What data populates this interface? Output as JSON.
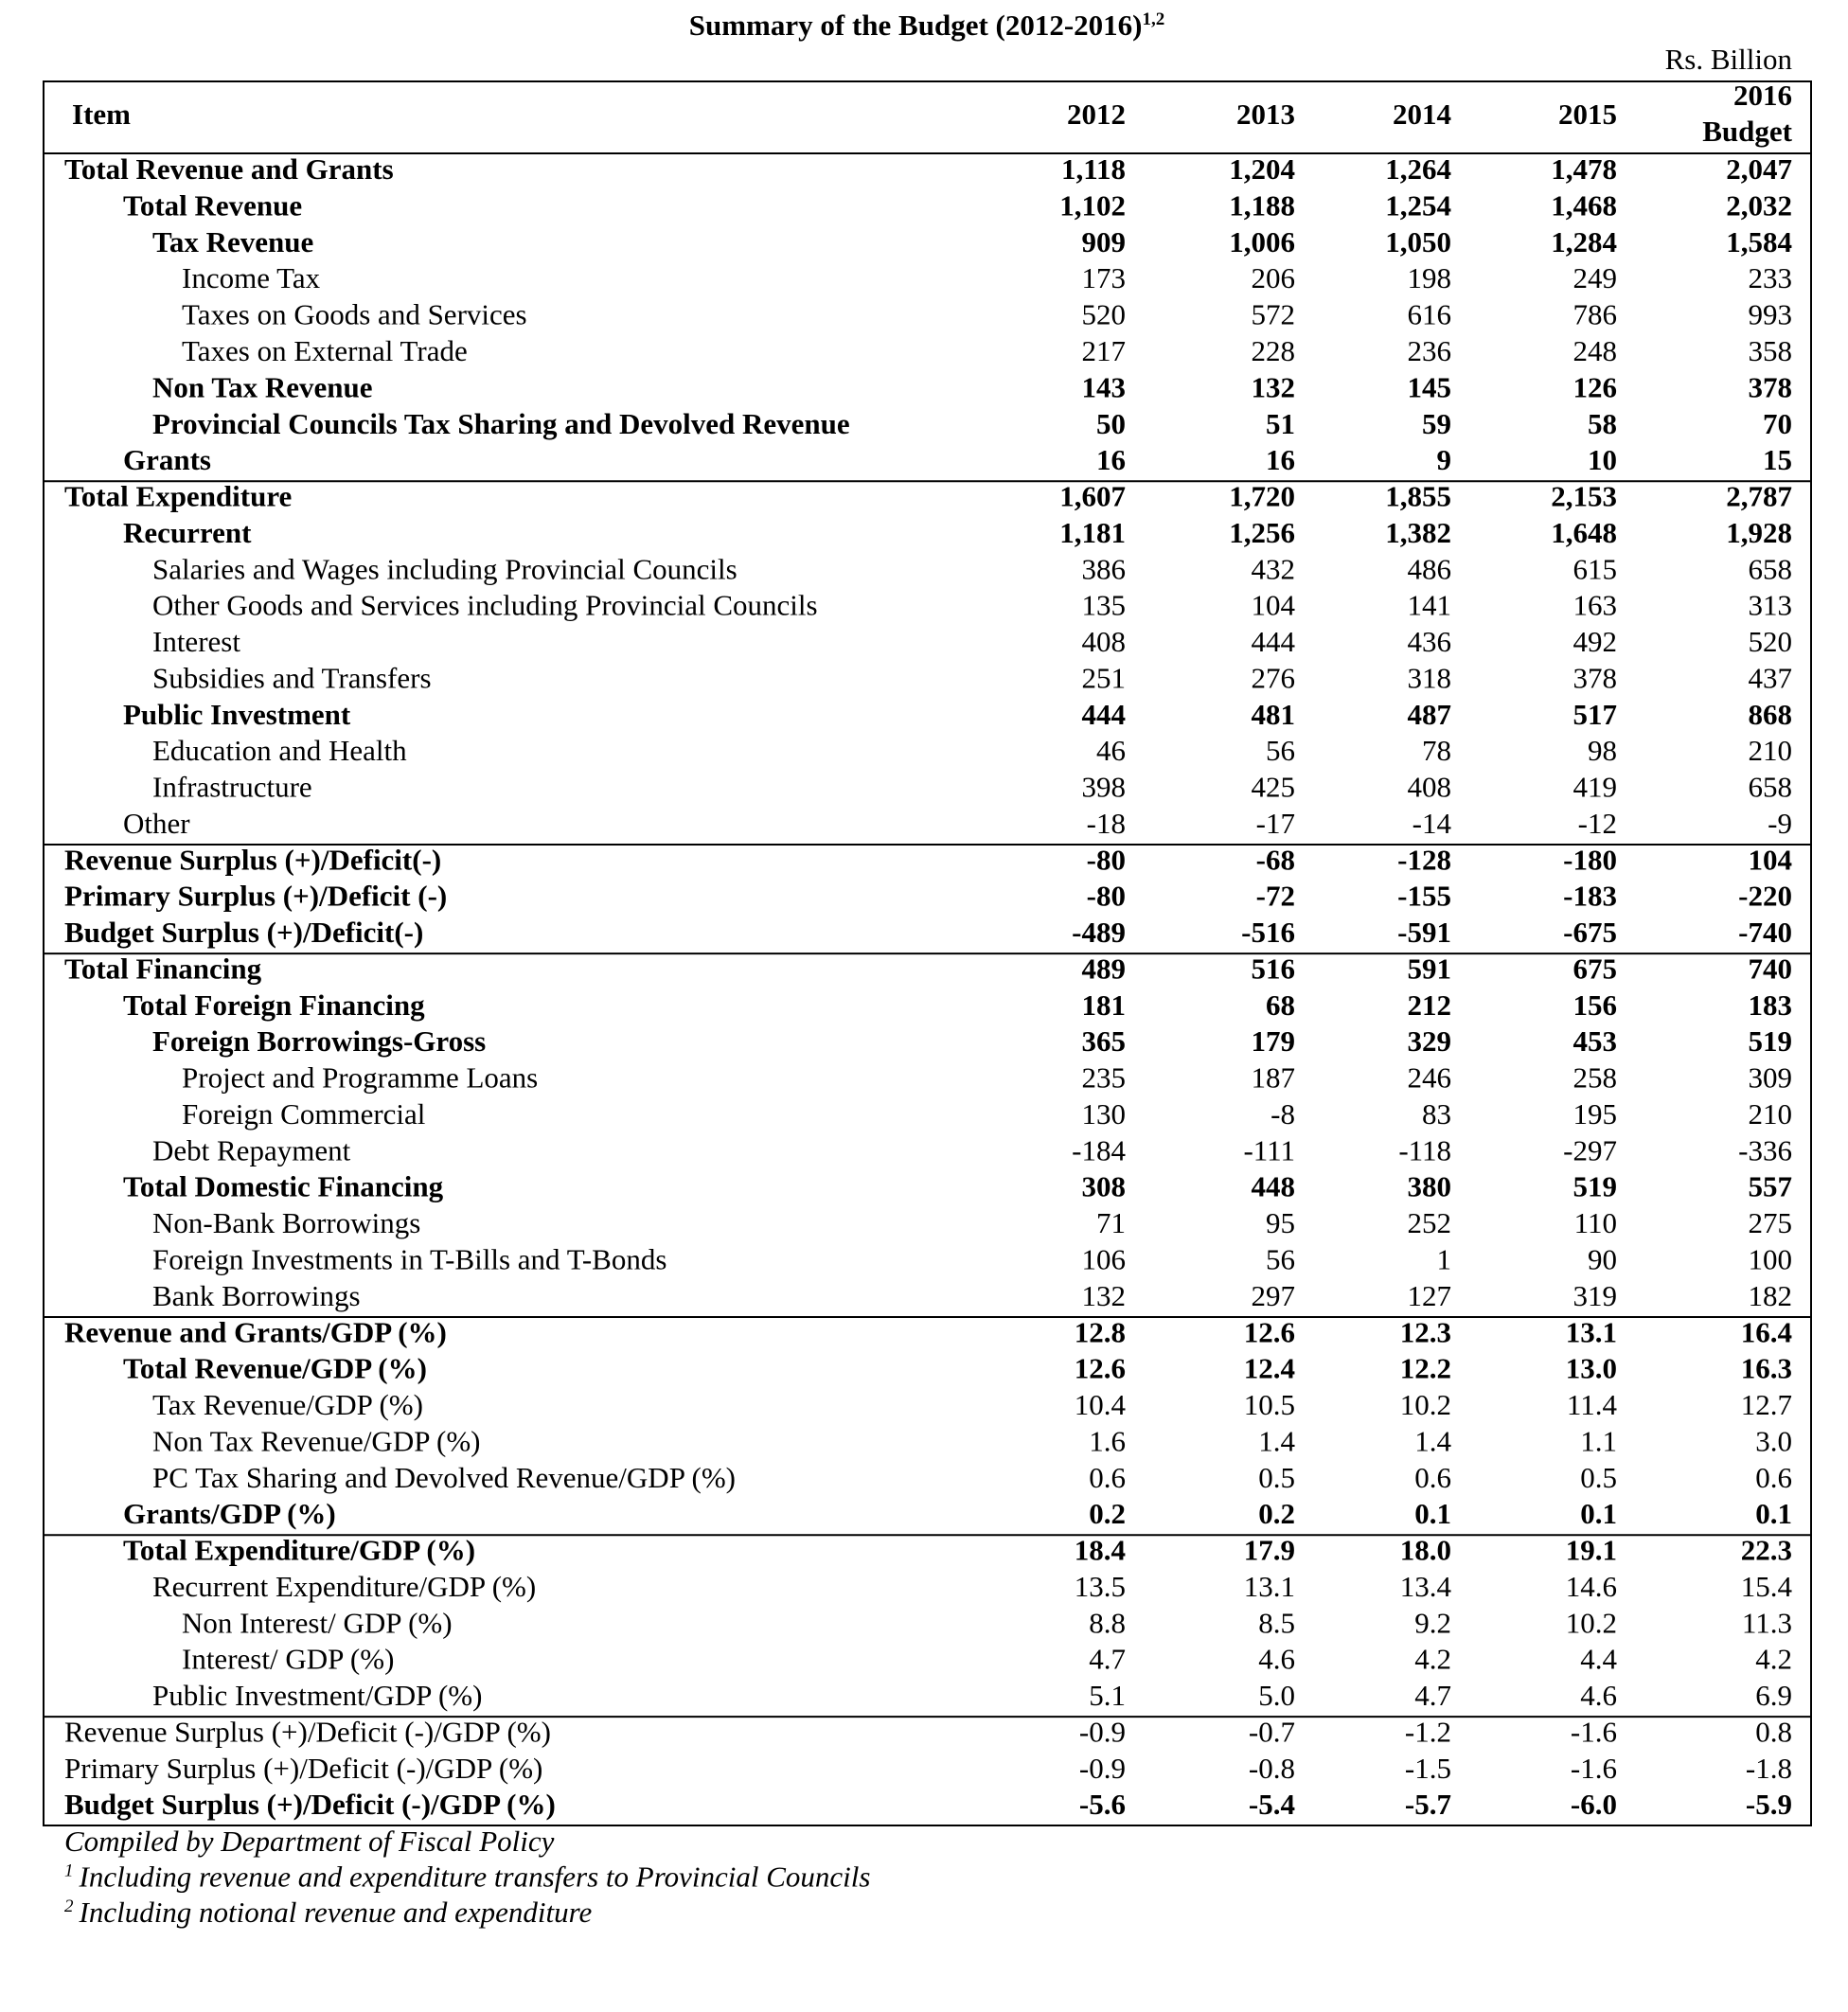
{
  "header": {
    "title": "Summary of the Budget (2012-2016)",
    "title_superscript": "1,2",
    "unit": "Rs. Billion"
  },
  "table": {
    "columns": [
      [
        "Item"
      ],
      [
        "2012"
      ],
      [
        "2013"
      ],
      [
        "2014"
      ],
      [
        "2015"
      ],
      [
        "2016",
        "Budget"
      ]
    ],
    "rows": [
      [
        "Total Revenue and Grants",
        "1,118",
        "1,204",
        "1,264",
        "1,478",
        "2,047"
      ],
      [
        "Total Revenue",
        "1,102",
        "1,188",
        "1,254",
        "1,468",
        "2,032"
      ],
      [
        "Tax Revenue",
        "909",
        "1,006",
        "1,050",
        "1,284",
        "1,584"
      ],
      [
        "Income Tax",
        "173",
        "206",
        "198",
        "249",
        "233"
      ],
      [
        "Taxes on Goods and Services",
        "520",
        "572",
        "616",
        "786",
        "993"
      ],
      [
        "Taxes on External Trade",
        "217",
        "228",
        "236",
        "248",
        "358"
      ],
      [
        "Non Tax Revenue",
        "143",
        "132",
        "145",
        "126",
        "378"
      ],
      [
        "Provincial Councils Tax Sharing and Devolved Revenue",
        "50",
        "51",
        "59",
        "58",
        "70"
      ],
      [
        "Grants",
        "16",
        "16",
        "9",
        "10",
        "15"
      ],
      [
        "Total Expenditure",
        "1,607",
        "1,720",
        "1,855",
        "2,153",
        "2,787"
      ],
      [
        "Recurrent",
        "1,181",
        "1,256",
        "1,382",
        "1,648",
        "1,928"
      ],
      [
        "Salaries and Wages including Provincial Councils",
        "386",
        "432",
        "486",
        "615",
        "658"
      ],
      [
        "Other Goods and Services including Provincial Councils",
        "135",
        "104",
        "141",
        "163",
        "313"
      ],
      [
        "Interest",
        "408",
        "444",
        "436",
        "492",
        "520"
      ],
      [
        "Subsidies and Transfers",
        "251",
        "276",
        "318",
        "378",
        "437"
      ],
      [
        "Public Investment",
        "444",
        "481",
        "487",
        "517",
        "868"
      ],
      [
        "Education and Health",
        "46",
        "56",
        "78",
        "98",
        "210"
      ],
      [
        "Infrastructure",
        "398",
        "425",
        "408",
        "419",
        "658"
      ],
      [
        "Other",
        "-18",
        "-17",
        "-14",
        "-12",
        "-9"
      ],
      [
        "Revenue Surplus (+)/Deficit(-)",
        "-80",
        "-68",
        "-128",
        "-180",
        "104"
      ],
      [
        "Primary Surplus (+)/Deficit (-)",
        "-80",
        "-72",
        "-155",
        "-183",
        "-220"
      ],
      [
        "Budget Surplus (+)/Deficit(-)",
        "-489",
        "-516",
        "-591",
        "-675",
        "-740"
      ],
      [
        "Total Financing",
        "489",
        "516",
        "591",
        "675",
        "740"
      ],
      [
        "Total Foreign Financing",
        "181",
        "68",
        "212",
        "156",
        "183"
      ],
      [
        "Foreign Borrowings-Gross",
        "365",
        "179",
        "329",
        "453",
        "519"
      ],
      [
        "Project and Programme Loans",
        "235",
        "187",
        "246",
        "258",
        "309"
      ],
      [
        "Foreign Commercial",
        "130",
        "-8",
        "83",
        "195",
        "210"
      ],
      [
        "Debt Repayment",
        "-184",
        "-111",
        "-118",
        "-297",
        "-336"
      ],
      [
        "Total Domestic Financing",
        "308",
        "448",
        "380",
        "519",
        "557"
      ],
      [
        "Non-Bank Borrowings",
        "71",
        "95",
        "252",
        "110",
        "275"
      ],
      [
        "Foreign Investments in T-Bills and T-Bonds",
        "106",
        "56",
        "1",
        "90",
        "100"
      ],
      [
        "Bank Borrowings",
        "132",
        "297",
        "127",
        "319",
        "182"
      ],
      [
        "Revenue and Grants/GDP (%)",
        "12.8",
        "12.6",
        "12.3",
        "13.1",
        "16.4"
      ],
      [
        "Total Revenue/GDP (%)",
        "12.6",
        "12.4",
        "12.2",
        "13.0",
        "16.3"
      ],
      [
        "Tax Revenue/GDP (%)",
        "10.4",
        "10.5",
        "10.2",
        "11.4",
        "12.7"
      ],
      [
        "Non Tax Revenue/GDP (%)",
        "1.6",
        "1.4",
        "1.4",
        "1.1",
        "3.0"
      ],
      [
        "PC Tax Sharing and Devolved Revenue/GDP (%)",
        "0.6",
        "0.5",
        "0.6",
        "0.5",
        "0.6"
      ],
      [
        "Grants/GDP (%)",
        "0.2",
        "0.2",
        "0.1",
        "0.1",
        "0.1"
      ],
      [
        "Total Expenditure/GDP (%)",
        "18.4",
        "17.9",
        "18.0",
        "19.1",
        "22.3"
      ],
      [
        "Recurrent Expenditure/GDP (%)",
        "13.5",
        "13.1",
        "13.4",
        "14.6",
        "15.4"
      ],
      [
        "Non Interest/ GDP (%)",
        "8.8",
        "8.5",
        "9.2",
        "10.2",
        "11.3"
      ],
      [
        "Interest/ GDP (%)",
        "4.7",
        "4.6",
        "4.2",
        "4.4",
        "4.2"
      ],
      [
        "Public Investment/GDP (%)",
        "5.1",
        "5.0",
        "4.7",
        "4.6",
        "6.9"
      ],
      [
        "Revenue Surplus (+)/Deficit (-)/GDP (%)",
        "-0.9",
        "-0.7",
        "-1.2",
        "-1.6",
        "0.8"
      ],
      [
        "Primary Surplus (+)/Deficit (-)/GDP (%)",
        "-0.9",
        "-0.8",
        "-1.5",
        "-1.6",
        "-1.8"
      ],
      [
        "Budget Surplus (+)/Deficit (-)/GDP (%)",
        "-5.6",
        "-5.4",
        "-5.7",
        "-6.0",
        "-5.9"
      ]
    ]
  },
  "notes": [
    {
      "text": "Compiled by Department of Fiscal Policy"
    },
    {
      "mark": "1",
      "text": "Including revenue and expenditure transfers to Provincial Councils"
    },
    {
      "mark": "2",
      "text": "Including notional revenue and expenditure"
    }
  ]
}
